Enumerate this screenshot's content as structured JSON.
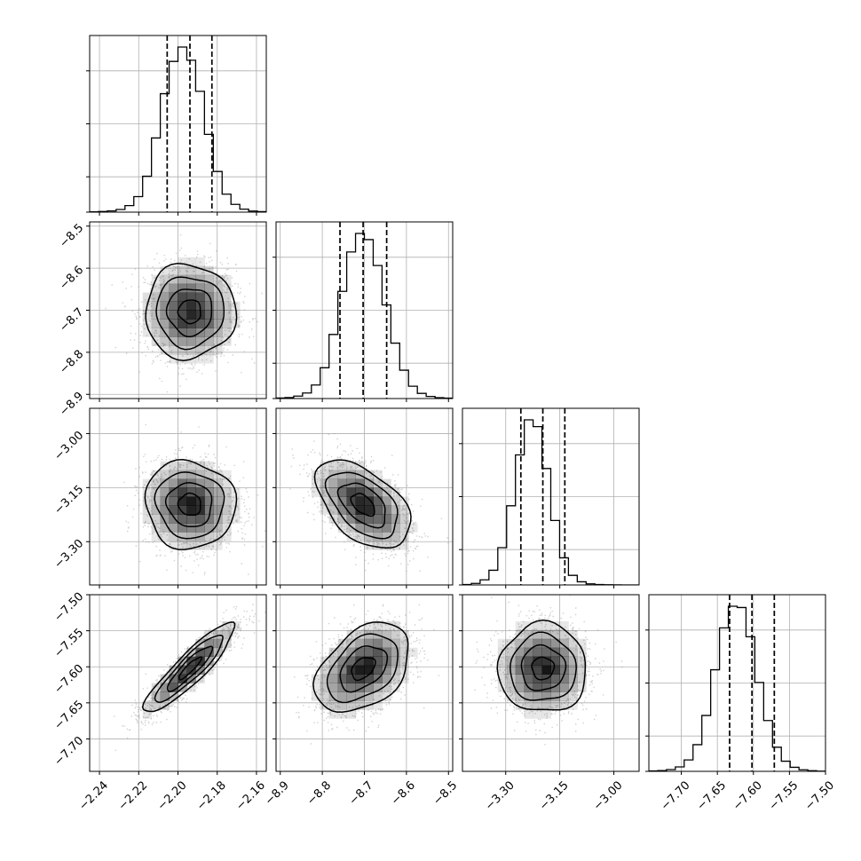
{
  "chart_data": {
    "type": "corner",
    "parameters": [
      {
        "index": 0,
        "range": [
          -2.245,
          -2.155
        ],
        "ticks": [
          -2.24,
          -2.22,
          -2.2,
          -2.18,
          -2.16
        ],
        "tick_labels": [
          "−2.24",
          "−2.22",
          "−2.20",
          "−2.18",
          "−2.16"
        ],
        "quantiles": [
          -2.2055,
          -2.1939,
          -2.1827
        ],
        "mean": -2.1939,
        "std": 0.0115
      },
      {
        "index": 1,
        "range": [
          -8.91,
          -8.49
        ],
        "ticks": [
          -8.9,
          -8.8,
          -8.7,
          -8.6,
          -8.5
        ],
        "tick_labels": [
          "−8.9",
          "−8.8",
          "−8.7",
          "−8.6",
          "−8.5"
        ],
        "quantiles": [
          -8.758,
          -8.703,
          -8.647
        ],
        "mean": -8.703,
        "std": 0.056
      },
      {
        "index": 2,
        "range": [
          -3.42,
          -2.93
        ],
        "ticks": [
          -3.3,
          -3.15,
          -3.0
        ],
        "tick_labels": [
          "−3.30",
          "−3.15",
          "−3.00"
        ],
        "quantiles": [
          -3.258,
          -3.197,
          -3.136
        ],
        "mean": -3.197,
        "std": 0.061
      },
      {
        "index": 3,
        "range": [
          -7.745,
          -7.5
        ],
        "ticks": [
          -7.7,
          -7.65,
          -7.6,
          -7.55,
          -7.5
        ],
        "tick_labels": [
          "−7.70",
          "−7.65",
          "−7.60",
          "−7.55",
          "−7.50"
        ],
        "quantiles": [
          -7.633,
          -7.602,
          -7.571
        ],
        "mean": -7.602,
        "std": 0.031
      }
    ],
    "histograms": [
      {
        "param": 0,
        "bin_edges": [
          -2.245,
          -2.2405,
          -2.236,
          -2.2315,
          -2.227,
          -2.2225,
          -2.218,
          -2.2135,
          -2.209,
          -2.2045,
          -2.2,
          -2.1955,
          -2.191,
          -2.1865,
          -2.182,
          -2.1775,
          -2.173,
          -2.1685,
          -2.164,
          -2.1595,
          -2.155
        ],
        "counts": [
          3,
          5,
          10,
          22,
          55,
          130,
          300,
          620,
          990,
          1260,
          1380,
          1270,
          1010,
          650,
          340,
          150,
          65,
          25,
          9,
          4
        ]
      },
      {
        "param": 1,
        "bin_edges": [
          -8.91,
          -8.889,
          -8.868,
          -8.847,
          -8.826,
          -8.805,
          -8.784,
          -8.763,
          -8.742,
          -8.721,
          -8.7,
          -8.679,
          -8.658,
          -8.637,
          -8.616,
          -8.595,
          -8.574,
          -8.553,
          -8.532,
          -8.511,
          -8.49
        ],
        "counts": [
          4,
          8,
          20,
          45,
          110,
          250,
          520,
          870,
          1190,
          1340,
          1290,
          1080,
          760,
          450,
          230,
          100,
          42,
          17,
          7,
          3
        ]
      },
      {
        "param": 2,
        "bin_edges": [
          -3.42,
          -3.3955,
          -3.371,
          -3.3465,
          -3.322,
          -3.2975,
          -3.273,
          -3.2485,
          -3.224,
          -3.1995,
          -3.175,
          -3.1505,
          -3.126,
          -3.1015,
          -3.077,
          -3.0525,
          -3.028,
          -3.0035,
          -2.979,
          -2.9545,
          -2.93
        ],
        "counts": [
          4,
          14,
          45,
          130,
          330,
          700,
          1150,
          1460,
          1400,
          1030,
          570,
          240,
          85,
          28,
          10,
          4,
          2,
          1,
          0,
          0
        ]
      },
      {
        "param": 3,
        "bin_edges": [
          -7.745,
          -7.73275,
          -7.7205,
          -7.70825,
          -7.696,
          -7.68375,
          -7.6715,
          -7.65925,
          -7.647,
          -7.63475,
          -7.6225,
          -7.61025,
          -7.598,
          -7.58575,
          -7.5735,
          -7.56125,
          -7.549,
          -7.53675,
          -7.5245,
          -7.51225,
          -7.5
        ],
        "counts": [
          3,
          6,
          14,
          35,
          90,
          210,
          440,
          800,
          1130,
          1300,
          1290,
          1060,
          700,
          400,
          190,
          80,
          32,
          12,
          5,
          2
        ]
      }
    ],
    "pairs": [
      {
        "row": 1,
        "col": 0,
        "correlation": 0.0
      },
      {
        "row": 2,
        "col": 0,
        "correlation": -0.05
      },
      {
        "row": 2,
        "col": 1,
        "correlation": -0.5
      },
      {
        "row": 3,
        "col": 0,
        "correlation": 0.9
      },
      {
        "row": 3,
        "col": 1,
        "correlation": 0.4
      },
      {
        "row": 3,
        "col": 2,
        "correlation": 0.0
      }
    ],
    "contour_levels_sigma": [
      0.5,
      1.0,
      1.5,
      2.0
    ],
    "grid": true,
    "colors": {
      "line": "#000000",
      "grid": "#b0b0b0",
      "points": "#9a9a9a",
      "density": "#000000"
    }
  }
}
